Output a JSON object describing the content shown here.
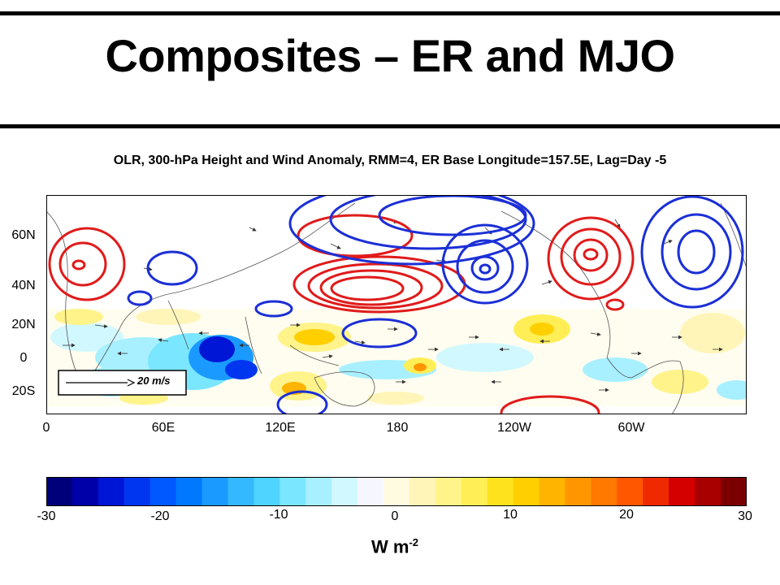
{
  "slide": {
    "title": "Composites – ER and MJO",
    "subtitle": "OLR, 300-hPa Height and Wind Anomaly, RMM=4, ER Base Longitude=157.5E, Lag=Day -5"
  },
  "map": {
    "lat_labels": [
      "60N",
      "40N",
      "20N",
      "0",
      "20S"
    ],
    "lon_labels": [
      "0",
      "60E",
      "120E",
      "180",
      "120W",
      "60W"
    ],
    "reference_vector": "20 m/s",
    "contour_colors": {
      "positive": "#e01b1b",
      "negative": "#1b2fd6"
    }
  },
  "colorbar": {
    "ticks": [
      "-30",
      "-20",
      "-10",
      "0",
      "10",
      "20",
      "30"
    ],
    "units_base": "W m",
    "units_exp": "-2",
    "colors": [
      "#00007a",
      "#0000a8",
      "#0016d6",
      "#0036f0",
      "#0058ff",
      "#0078ff",
      "#1a9aff",
      "#34b8ff",
      "#4fd4ff",
      "#7ae6ff",
      "#a8f0ff",
      "#d2f8ff",
      "#f6f6ff",
      "#fffbe0",
      "#fff5b8",
      "#fff38a",
      "#ffee55",
      "#ffe21e",
      "#ffcf00",
      "#ffb400",
      "#ff9600",
      "#ff7800",
      "#ff5600",
      "#f02a00",
      "#d40000",
      "#a80000",
      "#7a0000"
    ]
  }
}
